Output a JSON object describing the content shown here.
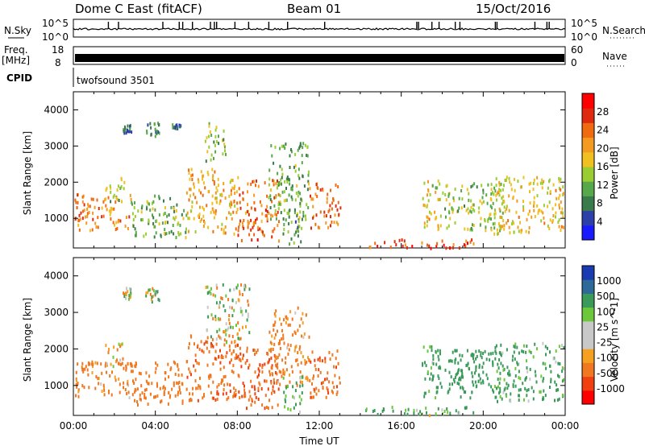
{
  "header": {
    "station": "Dome C East (fitACF)",
    "beam": "Beam 01",
    "date": "15/Oct/2016"
  },
  "strip_labels": {
    "nsky": "N.Sky",
    "freq_line1": "Freq.",
    "freq_line2": "[MHz]",
    "cpid": "CPID",
    "nsearch": "N.Search",
    "nave": "Nave",
    "cpid_value": "twofsound 3501"
  },
  "strip_ticks": {
    "noise_top": "10^5",
    "noise_bottom": "10^0",
    "freq_top": "18",
    "freq_bottom": "8",
    "nave_top": "60",
    "nave_bottom": "0"
  },
  "colors": {
    "power_scale": [
      "#1a1aff",
      "#2d3fa8",
      "#3b7a4a",
      "#56a84a",
      "#9acd32",
      "#f0c020",
      "#f59a20",
      "#f06a10",
      "#e02a10",
      "#ff0000"
    ],
    "velocity_scale": [
      "#ff0000",
      "#f04010",
      "#f07820",
      "#f5a020",
      "#c8c8c8",
      "#c8c8c8",
      "#6cc83a",
      "#3a9a5a",
      "#2d6a9a",
      "#1a3ab0"
    ]
  },
  "chart_data": [
    {
      "type": "heatmap",
      "name": "power",
      "xlabel": "",
      "ylabel": "Slant Range [km]",
      "xlim": [
        "00:00",
        "24:00"
      ],
      "ylim": [
        180,
        4500
      ],
      "yticks": [
        1000,
        2000,
        3000,
        4000
      ],
      "colorbar_label": "Power [dB]",
      "colorbar_ticks": [
        4,
        8,
        12,
        16,
        20,
        24,
        28
      ],
      "colorbar_range": [
        0,
        32
      ],
      "regions": [
        {
          "t": [
            0.0,
            2.8
          ],
          "r": [
            700,
            1700
          ],
          "value": 22
        },
        {
          "t": [
            1.5,
            2.5
          ],
          "r": [
            1500,
            2200
          ],
          "value": 14
        },
        {
          "t": [
            2.8,
            5.5
          ],
          "r": [
            500,
            1700
          ],
          "value": 12
        },
        {
          "t": [
            2.4,
            2.8
          ],
          "r": [
            3400,
            3700
          ],
          "value": 8
        },
        {
          "t": [
            3.5,
            4.2
          ],
          "r": [
            3300,
            3700
          ],
          "value": 8
        },
        {
          "t": [
            4.8,
            5.2
          ],
          "r": [
            3500,
            3650
          ],
          "value": 6
        },
        {
          "t": [
            5.5,
            8.0
          ],
          "r": [
            600,
            2400
          ],
          "value": 20
        },
        {
          "t": [
            6.4,
            7.4
          ],
          "r": [
            2600,
            3700
          ],
          "value": 14
        },
        {
          "t": [
            8.0,
            10.0
          ],
          "r": [
            400,
            2100
          ],
          "value": 24
        },
        {
          "t": [
            9.5,
            11.5
          ],
          "r": [
            1000,
            3200
          ],
          "value": 12
        },
        {
          "t": [
            10.2,
            11.2
          ],
          "r": [
            300,
            1300
          ],
          "value": 10
        },
        {
          "t": [
            11.5,
            13.0
          ],
          "r": [
            700,
            2000
          ],
          "value": 24
        },
        {
          "t": [
            14.2,
            19.5
          ],
          "r": [
            200,
            450
          ],
          "value": 26
        },
        {
          "t": [
            17.0,
            17.8
          ],
          "r": [
            700,
            2100
          ],
          "value": 18
        },
        {
          "t": [
            17.5,
            21.0
          ],
          "r": [
            700,
            2000
          ],
          "value": 14
        },
        {
          "t": [
            20.5,
            23.9
          ],
          "r": [
            600,
            2200
          ],
          "value": 18
        }
      ]
    },
    {
      "type": "heatmap",
      "name": "velocity",
      "xlabel": "Time UT",
      "ylabel": "Slant Range [km]",
      "xlim": [
        "00:00",
        "24:00"
      ],
      "xticks": [
        "00:00",
        "04:00",
        "08:00",
        "12:00",
        "16:00",
        "20:00",
        "00:00"
      ],
      "ylim": [
        180,
        4500
      ],
      "yticks": [
        1000,
        2000,
        3000,
        4000
      ],
      "colorbar_label": "Velocity [m s^-1]",
      "colorbar_ticks": [
        "1000",
        "500",
        "100",
        "25",
        "-25",
        "-100",
        "-500",
        "-1000"
      ],
      "regions": [
        {
          "t": [
            0.0,
            2.8
          ],
          "r": [
            700,
            1700
          ],
          "value": -200
        },
        {
          "t": [
            1.5,
            2.5
          ],
          "r": [
            1500,
            2200
          ],
          "value": -100
        },
        {
          "t": [
            2.8,
            5.5
          ],
          "r": [
            500,
            1700
          ],
          "value": -300
        },
        {
          "t": [
            2.4,
            2.8
          ],
          "r": [
            3400,
            3700
          ],
          "value": 0
        },
        {
          "t": [
            3.5,
            4.2
          ],
          "r": [
            3300,
            3700
          ],
          "value": 0
        },
        {
          "t": [
            5.5,
            8.0
          ],
          "r": [
            600,
            2400
          ],
          "value": -400
        },
        {
          "t": [
            6.4,
            8.6
          ],
          "r": [
            2200,
            3800
          ],
          "value": 0
        },
        {
          "t": [
            8.0,
            10.0
          ],
          "r": [
            400,
            2100
          ],
          "value": -500
        },
        {
          "t": [
            9.5,
            11.5
          ],
          "r": [
            1000,
            3200
          ],
          "value": -200
        },
        {
          "t": [
            10.2,
            11.2
          ],
          "r": [
            300,
            1300
          ],
          "value": 200
        },
        {
          "t": [
            11.5,
            13.0
          ],
          "r": [
            700,
            2000
          ],
          "value": -400
        },
        {
          "t": [
            14.2,
            19.5
          ],
          "r": [
            200,
            450
          ],
          "value": 150
        },
        {
          "t": [
            17.0,
            17.8
          ],
          "r": [
            700,
            2100
          ],
          "value": 200
        },
        {
          "t": [
            17.5,
            21.0
          ],
          "r": [
            700,
            2000
          ],
          "value": 300
        },
        {
          "t": [
            20.5,
            23.9
          ],
          "r": [
            600,
            2200
          ],
          "value": 200
        }
      ]
    }
  ]
}
